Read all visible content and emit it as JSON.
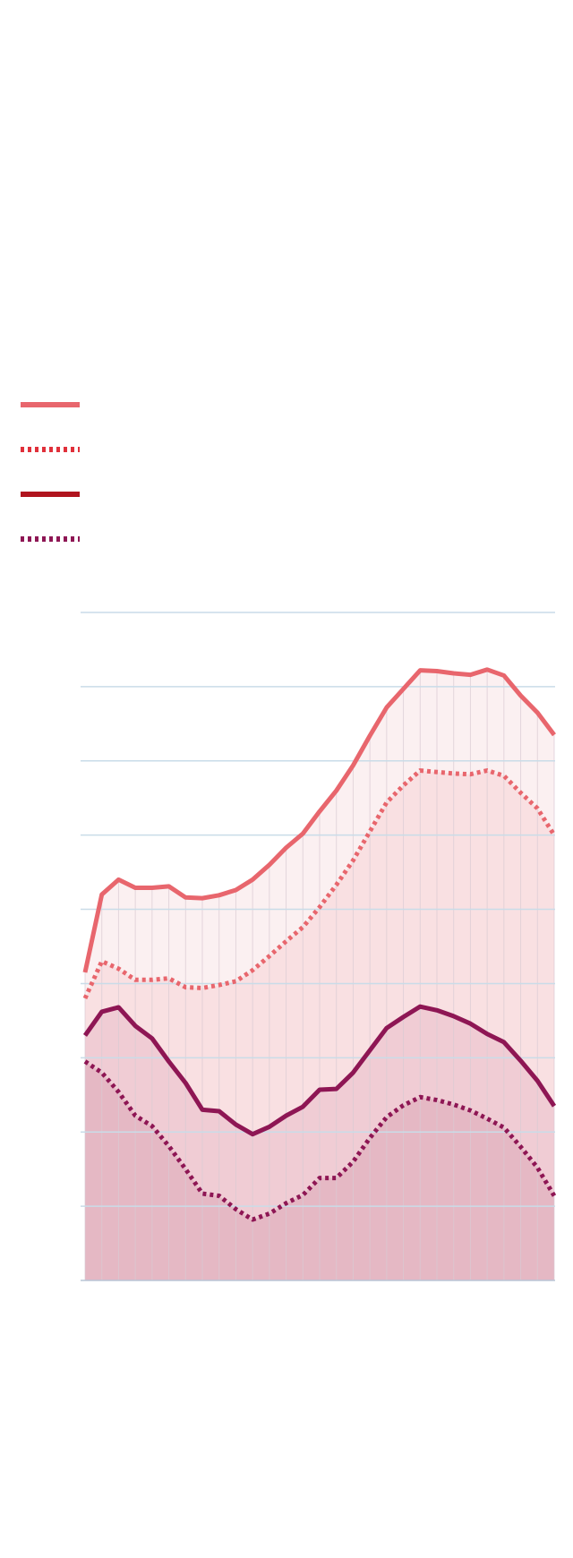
{
  "chart_data": {
    "type": "area",
    "title": "",
    "xlabel": "",
    "ylabel": "",
    "x": [
      1,
      2,
      3,
      4,
      5,
      6,
      7,
      8,
      9,
      10,
      11,
      12,
      13,
      14,
      15,
      16,
      17,
      18,
      19,
      20,
      21,
      22,
      23,
      24,
      25,
      26,
      27,
      28,
      29
    ],
    "ylim": [
      0,
      9
    ],
    "grid": true,
    "legend_placement": "top-left",
    "series": [
      {
        "line_style": "solid",
        "color": "#E8666D",
        "values": [
          4.15,
          5.2,
          5.4,
          5.29,
          5.29,
          5.31,
          5.16,
          5.15,
          5.19,
          5.26,
          5.4,
          5.6,
          5.83,
          6.02,
          6.32,
          6.6,
          6.94,
          7.34,
          7.72,
          7.97,
          8.22,
          8.21,
          8.18,
          8.16,
          8.23,
          8.15,
          7.88,
          7.65,
          7.35
        ]
      },
      {
        "line_style": "dotted",
        "color": "#E8666D",
        "values": [
          3.8,
          4.3,
          4.2,
          4.05,
          4.05,
          4.07,
          3.95,
          3.94,
          3.98,
          4.03,
          4.18,
          4.37,
          4.57,
          4.76,
          5.03,
          5.33,
          5.66,
          6.05,
          6.44,
          6.67,
          6.87,
          6.85,
          6.83,
          6.82,
          6.87,
          6.8,
          6.57,
          6.36,
          6.0
        ]
      },
      {
        "line_style": "solid",
        "color": "#8E1654",
        "values": [
          3.3,
          3.62,
          3.68,
          3.43,
          3.26,
          2.95,
          2.66,
          2.3,
          2.28,
          2.1,
          1.97,
          2.07,
          2.22,
          2.34,
          2.57,
          2.58,
          2.8,
          3.1,
          3.4,
          3.55,
          3.69,
          3.64,
          3.56,
          3.46,
          3.32,
          3.21,
          2.96,
          2.69,
          2.35
        ]
      },
      {
        "line_style": "dotted",
        "color": "#8E1654",
        "values": [
          2.95,
          2.8,
          2.54,
          2.22,
          2.08,
          1.81,
          1.5,
          1.17,
          1.14,
          0.96,
          0.82,
          0.9,
          1.04,
          1.15,
          1.38,
          1.38,
          1.6,
          1.92,
          2.2,
          2.36,
          2.47,
          2.43,
          2.37,
          2.29,
          2.18,
          2.06,
          1.8,
          1.52,
          1.14
        ]
      }
    ],
    "colors": {
      "grid": "#C9DCE8",
      "vertical_grid": "#D9CBD3",
      "fill_top": "#FBF0F1",
      "fill_mid": "#F9E0E2",
      "fill_low": "#F0CCD4",
      "fill_bottom": "#E5B8C4"
    }
  }
}
